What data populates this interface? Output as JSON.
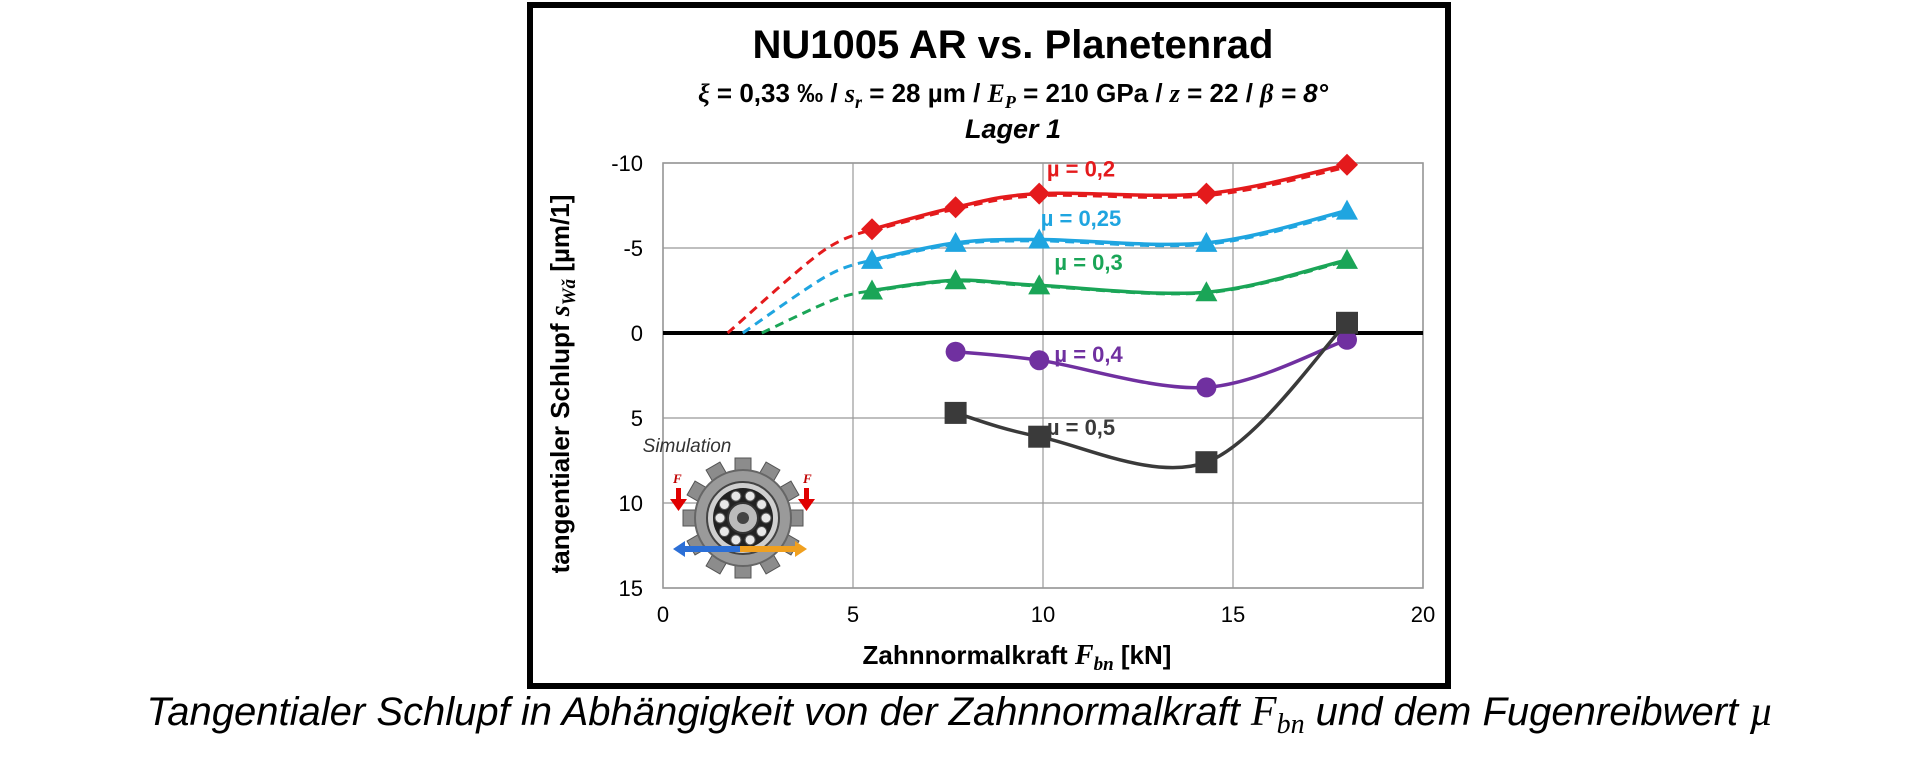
{
  "chart_data": {
    "type": "line",
    "title": "NU1005 AR vs. Planetenrad",
    "subtitle": {
      "p1_sym": "ξ",
      "p1_val": " = 0,33 ‰ ",
      "sep1": " / ",
      "p2_sym": "s",
      "p2_sub": "r",
      "p2_val": " = 28 µm / ",
      "p3_sym": "E",
      "p3_sub": "P",
      "p3_val": " = 210 GPa / ",
      "p4_sym": "z",
      "p4_val": " = 22 / ",
      "p5_sym": "β",
      "p5_val": " = 8°"
    },
    "subtitle2": "Lager 1",
    "xlabel": {
      "main": "Zahnnormalkraft ",
      "sym": "F",
      "sub": "bn",
      "unit": " [kN]"
    },
    "ylabel": {
      "main": "tangentialer Schlupf ",
      "sym": "s",
      "sub": "Wǎ",
      "unit": " [µm/1]"
    },
    "xlim": [
      0,
      20
    ],
    "ylim": [
      -10,
      15
    ],
    "y_inverted": true,
    "xticks": [
      "0",
      "5",
      "10",
      "15",
      "20"
    ],
    "yticks": [
      "-10",
      "-5",
      "0",
      "5",
      "10",
      "15"
    ],
    "grid": true,
    "series": [
      {
        "name": "µ = 0,2",
        "color": "#e41a1c",
        "marker": "diamond",
        "x": [
          5.5,
          7.7,
          9.9,
          14.3,
          18.0
        ],
        "y": [
          -6.1,
          -7.4,
          -8.2,
          -8.2,
          -9.9
        ],
        "extrapolation_x": [
          1.7,
          5.5
        ],
        "extrapolation_y": [
          0,
          -6.1
        ]
      },
      {
        "name": "µ = 0,25",
        "color": "#1fa5e0",
        "marker": "triangle",
        "x": [
          5.5,
          7.7,
          9.9,
          14.3,
          18.0
        ],
        "y": [
          -4.3,
          -5.3,
          -5.5,
          -5.3,
          -7.2
        ],
        "extrapolation_x": [
          2.1,
          5.5
        ],
        "extrapolation_y": [
          0,
          -4.3
        ]
      },
      {
        "name": "µ = 0,3",
        "color": "#1aa557",
        "marker": "triangle",
        "x": [
          5.5,
          7.7,
          9.9,
          14.3,
          18.0
        ],
        "y": [
          -2.5,
          -3.1,
          -2.8,
          -2.4,
          -4.3
        ],
        "extrapolation_x": [
          2.6,
          5.5
        ],
        "extrapolation_y": [
          0,
          -2.5
        ]
      },
      {
        "name": "µ = 0,4",
        "color": "#7030a0",
        "marker": "circle",
        "x": [
          7.7,
          9.9,
          14.3,
          18.0
        ],
        "y": [
          1.1,
          1.6,
          3.2,
          0.4
        ]
      },
      {
        "name": "µ = 0,5",
        "color": "#3a3a3a",
        "marker": "square",
        "x": [
          7.7,
          9.9,
          14.3,
          18.0
        ],
        "y": [
          4.7,
          6.1,
          7.6,
          -0.6
        ]
      }
    ],
    "annotation": "Simulation",
    "annotation_force": "F"
  },
  "caption": {
    "main": "Tangentialer Schlupf in Abhängigkeit von der Zahnnormalkraft ",
    "sym1": "F",
    "sub1": "bn",
    "mid": " und dem Fugenreibwert ",
    "sym2": "µ"
  }
}
